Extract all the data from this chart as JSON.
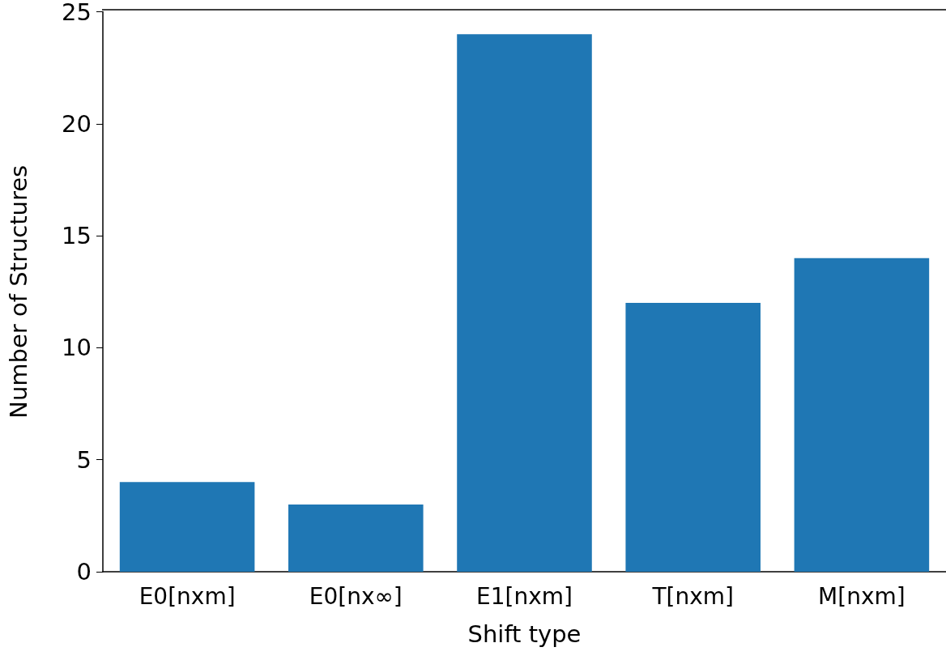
{
  "chart_data": {
    "type": "bar",
    "xlabel": "Shift type",
    "ylabel": "Number of Structures",
    "categories": [
      "E0[nxm]",
      "E0[nx∞]",
      "E1[nxm]",
      "T[nxm]",
      "M[nxm]"
    ],
    "values": [
      4,
      3,
      24,
      12,
      14
    ],
    "color": "#1f77b4",
    "ylim": [
      0,
      25
    ],
    "yticks": [
      0,
      5,
      10,
      15,
      20,
      25
    ],
    "grid": false
  }
}
